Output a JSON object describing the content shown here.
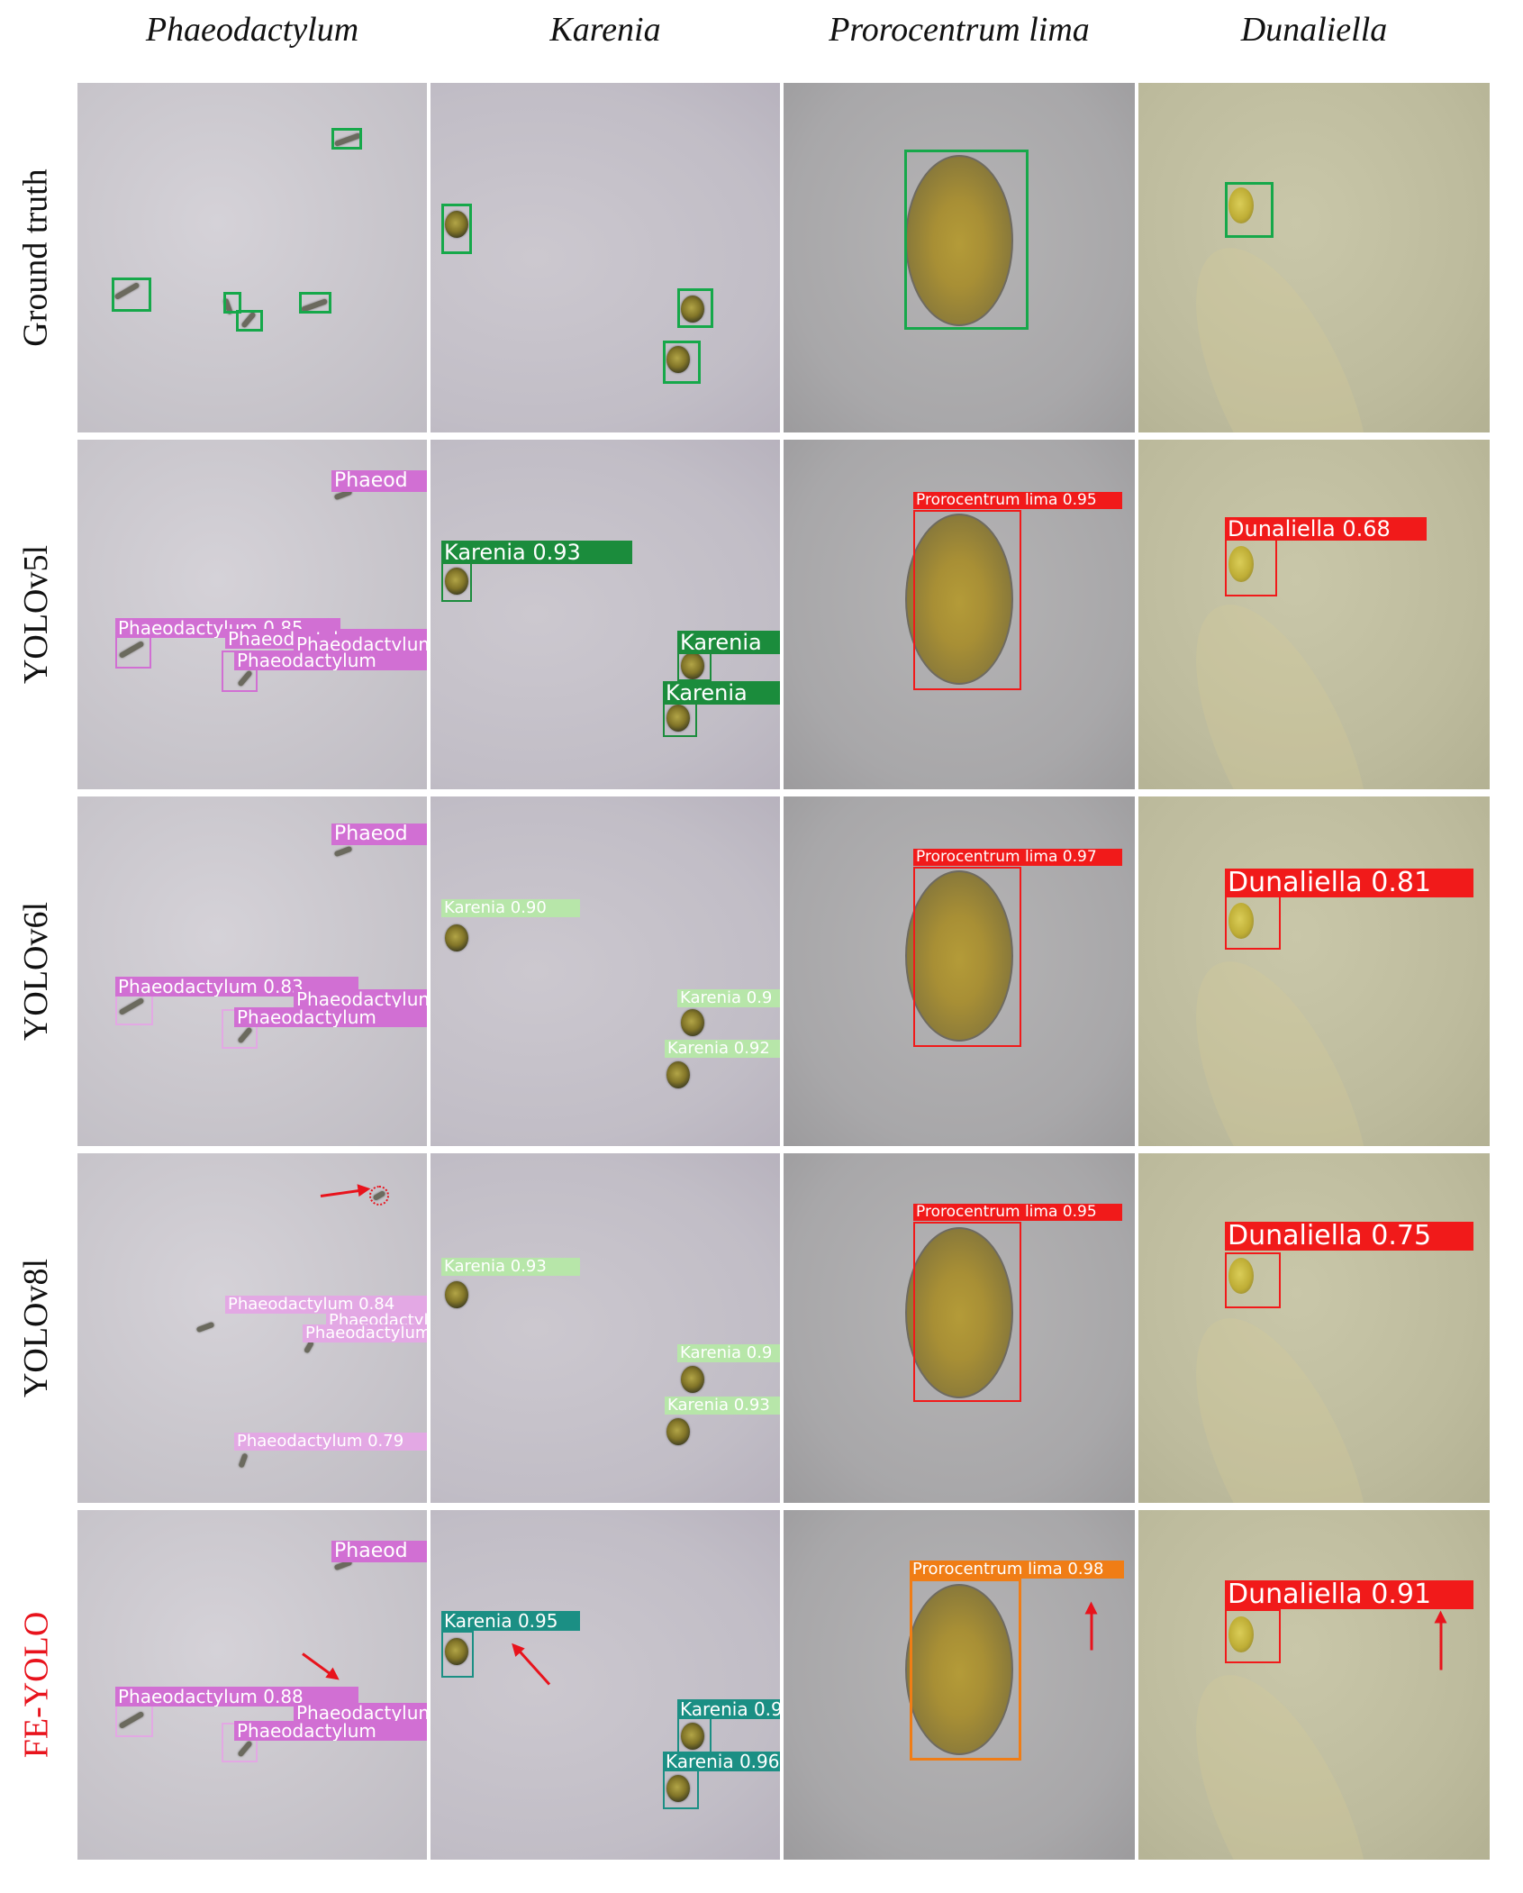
{
  "columns": [
    "Phaeodactylum",
    "Karenia",
    "Prorocentrum lima",
    "Dunaliella"
  ],
  "rows": [
    "Ground truth",
    "YOLOv5l",
    "YOLOv6l",
    "YOLOv8l",
    "FE-YOLO"
  ],
  "colors": {
    "ground_truth_box": "#16a84a",
    "phaeodactylum_label": "#d16fd3",
    "karenia_yolov5l": "#1b8c3c",
    "karenia_yolov6l_yolov8l": "#b7e6a9",
    "karenia_fe_yolo": "#1b8f84",
    "prorocentrum_dunaliella": "#f11a1a",
    "prorocentrum_fe_yolo": "#f07d15",
    "highlight_arrow": "#e8131c"
  },
  "detections": {
    "yolov5l": {
      "phaeodactylum": [
        "Phaeod",
        "Phaeodactylum 0.85",
        "Phaeodactylum",
        "Phaeodactylum",
        "Phaeodactylum"
      ],
      "karenia": [
        "Karenia 0.93",
        "Karenia",
        "Karenia"
      ],
      "prorocentrum": "Prorocentrum lima 0.95",
      "dunaliella": "Dunaliella 0.68"
    },
    "yolov6l": {
      "phaeodactylum": [
        "Phaeod",
        "Phaeodactylum 0.83",
        "Phaeodactylum",
        "Phaeodactylum"
      ],
      "karenia": [
        "Karenia 0.90",
        "Karenia 0.9",
        "Karenia 0.92"
      ],
      "prorocentrum": "Prorocentrum lima 0.97",
      "dunaliella": "Dunaliella 0.81"
    },
    "yolov8l": {
      "phaeodactylum": [
        "Phaeodactylum 0.84",
        "Phaeodactylum",
        "Phaeodactylum",
        "Phaeodactylum 0.79"
      ],
      "karenia": [
        "Karenia 0.93",
        "Karenia 0.9",
        "Karenia 0.93"
      ],
      "prorocentrum": "Prorocentrum lima 0.95",
      "dunaliella": "Dunaliella 0.75"
    },
    "fe_yolo": {
      "phaeodactylum": [
        "Phaeod",
        "Phaeodactylum 0.88",
        "Phaeodactylum",
        "Phaeodactylum"
      ],
      "karenia": [
        "Karenia 0.95",
        "Karenia 0.9",
        "Karenia 0.96"
      ],
      "prorocentrum": "Prorocentrum lima 0.98",
      "dunaliella": "Dunaliella 0.91"
    }
  }
}
